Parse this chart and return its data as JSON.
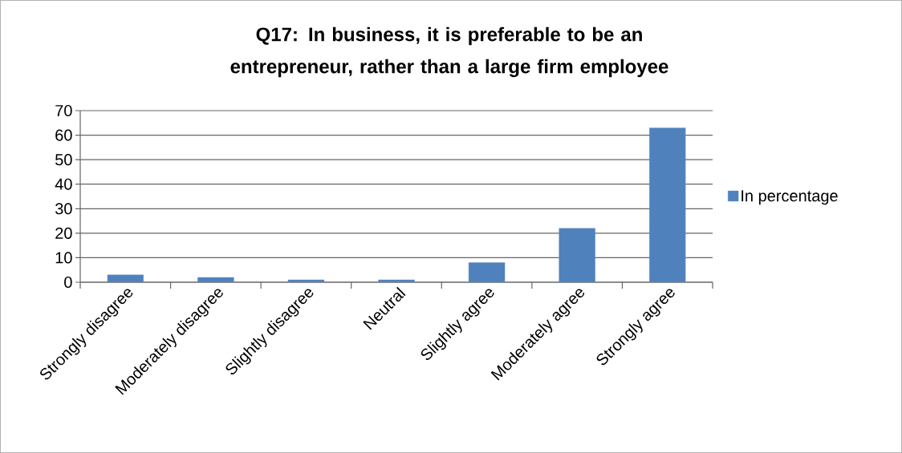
{
  "chart_data": {
    "type": "bar",
    "title": "Q17: In business, it is preferable to be an entrepreneur, rather than a large firm employee",
    "categories": [
      "Strongly disagree",
      "Moderately disagree",
      "Slightly disagree",
      "Neutral",
      "Slightly agree",
      "Moderately agree",
      "Strongly agree"
    ],
    "series": [
      {
        "name": "In percentage",
        "color": "#4f81bd",
        "values": [
          3,
          2,
          1,
          1,
          8,
          22,
          63
        ]
      }
    ],
    "ylim": [
      0,
      70
    ],
    "yticks": [
      0,
      10,
      20,
      30,
      40,
      50,
      60,
      70
    ],
    "grid": "y",
    "legend": "right"
  }
}
